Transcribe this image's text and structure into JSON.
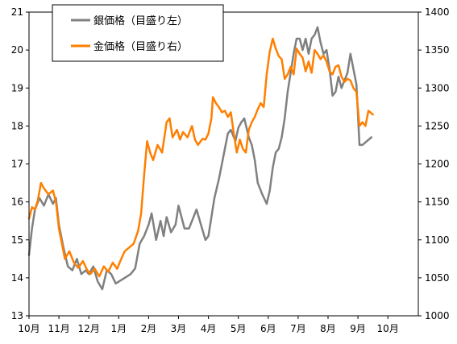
{
  "chart_data": {
    "type": "line",
    "title": "",
    "xlabel": "",
    "ylabel": "",
    "x_ticks": [
      "10月",
      "11月",
      "12月",
      "1月",
      "2月",
      "3月",
      "4月",
      "5月",
      "6月",
      "7月",
      "8月",
      "9月",
      "10月"
    ],
    "y_left": {
      "ticks": [
        "13",
        "14",
        "15",
        "16",
        "17",
        "18",
        "19",
        "20",
        "21"
      ],
      "min": 13,
      "max": 21
    },
    "y_right": {
      "ticks": [
        "1000",
        "1050",
        "1100",
        "1150",
        "1200",
        "1250",
        "1300",
        "1350",
        "1400"
      ],
      "min": 1000,
      "max": 1400
    },
    "grid": false,
    "legend_position": "top-center",
    "series": [
      {
        "name": "銀価格（目盛り左）",
        "axis": "left",
        "color": "#808080",
        "points": [
          [
            0,
            14.6
          ],
          [
            0.1,
            15.3
          ],
          [
            0.2,
            15.8
          ],
          [
            0.35,
            16.1
          ],
          [
            0.5,
            15.9
          ],
          [
            0.65,
            16.2
          ],
          [
            0.8,
            15.95
          ],
          [
            0.9,
            16.1
          ],
          [
            1.0,
            15.4
          ],
          [
            1.15,
            14.8
          ],
          [
            1.3,
            14.3
          ],
          [
            1.45,
            14.2
          ],
          [
            1.6,
            14.5
          ],
          [
            1.75,
            14.1
          ],
          [
            1.9,
            14.2
          ],
          [
            2.0,
            14.1
          ],
          [
            2.15,
            14.3
          ],
          [
            2.3,
            13.9
          ],
          [
            2.45,
            13.7
          ],
          [
            2.6,
            14.2
          ],
          [
            2.75,
            14.1
          ],
          [
            2.9,
            13.85
          ],
          [
            3.0,
            13.9
          ],
          [
            3.2,
            14.0
          ],
          [
            3.4,
            14.1
          ],
          [
            3.55,
            14.25
          ],
          [
            3.7,
            14.9
          ],
          [
            3.85,
            15.1
          ],
          [
            4.0,
            15.4
          ],
          [
            4.1,
            15.7
          ],
          [
            4.25,
            15.0
          ],
          [
            4.4,
            15.5
          ],
          [
            4.5,
            15.1
          ],
          [
            4.6,
            15.6
          ],
          [
            4.75,
            15.2
          ],
          [
            4.9,
            15.4
          ],
          [
            5.0,
            15.9
          ],
          [
            5.1,
            15.6
          ],
          [
            5.2,
            15.3
          ],
          [
            5.35,
            15.3
          ],
          [
            5.5,
            15.6
          ],
          [
            5.6,
            15.8
          ],
          [
            5.75,
            15.4
          ],
          [
            5.9,
            15.0
          ],
          [
            6.0,
            15.1
          ],
          [
            6.1,
            15.6
          ],
          [
            6.2,
            16.1
          ],
          [
            6.35,
            16.6
          ],
          [
            6.45,
            17.0
          ],
          [
            6.55,
            17.4
          ],
          [
            6.65,
            17.8
          ],
          [
            6.75,
            17.9
          ],
          [
            6.9,
            17.6
          ],
          [
            7.0,
            17.95
          ],
          [
            7.1,
            18.1
          ],
          [
            7.2,
            18.2
          ],
          [
            7.35,
            17.7
          ],
          [
            7.45,
            17.5
          ],
          [
            7.55,
            17.1
          ],
          [
            7.65,
            16.5
          ],
          [
            7.8,
            16.2
          ],
          [
            7.95,
            15.95
          ],
          [
            8.05,
            16.3
          ],
          [
            8.15,
            16.9
          ],
          [
            8.25,
            17.3
          ],
          [
            8.35,
            17.4
          ],
          [
            8.45,
            17.7
          ],
          [
            8.55,
            18.2
          ],
          [
            8.65,
            18.9
          ],
          [
            8.75,
            19.4
          ],
          [
            8.85,
            19.9
          ],
          [
            8.95,
            20.3
          ],
          [
            9.05,
            20.3
          ],
          [
            9.15,
            20.0
          ],
          [
            9.25,
            20.3
          ],
          [
            9.35,
            19.9
          ],
          [
            9.45,
            20.3
          ],
          [
            9.55,
            20.4
          ],
          [
            9.65,
            20.6
          ],
          [
            9.75,
            20.2
          ],
          [
            9.85,
            19.9
          ],
          [
            9.95,
            20.0
          ],
          [
            10.05,
            19.5
          ],
          [
            10.15,
            18.8
          ],
          [
            10.25,
            18.9
          ],
          [
            10.35,
            19.3
          ],
          [
            10.45,
            19.0
          ],
          [
            10.55,
            19.2
          ],
          [
            10.65,
            19.4
          ],
          [
            10.75,
            19.9
          ],
          [
            10.85,
            19.5
          ],
          [
            10.95,
            19.1
          ],
          [
            11.05,
            17.5
          ],
          [
            11.15,
            17.5
          ],
          [
            11.3,
            17.6
          ],
          [
            11.45,
            17.7
          ]
        ]
      },
      {
        "name": "金価格（目盛り右）",
        "axis": "right",
        "color": "#FF7F00",
        "points": [
          [
            0,
            1128
          ],
          [
            0.1,
            1143
          ],
          [
            0.2,
            1140
          ],
          [
            0.3,
            1153
          ],
          [
            0.4,
            1175
          ],
          [
            0.5,
            1168
          ],
          [
            0.65,
            1160
          ],
          [
            0.8,
            1165
          ],
          [
            0.9,
            1150
          ],
          [
            1.0,
            1115
          ],
          [
            1.1,
            1095
          ],
          [
            1.2,
            1075
          ],
          [
            1.35,
            1085
          ],
          [
            1.5,
            1070
          ],
          [
            1.65,
            1063
          ],
          [
            1.8,
            1072
          ],
          [
            1.95,
            1060
          ],
          [
            2.05,
            1055
          ],
          [
            2.2,
            1062
          ],
          [
            2.35,
            1052
          ],
          [
            2.5,
            1065
          ],
          [
            2.65,
            1058
          ],
          [
            2.8,
            1070
          ],
          [
            2.95,
            1062
          ],
          [
            3.05,
            1072
          ],
          [
            3.2,
            1085
          ],
          [
            3.35,
            1090
          ],
          [
            3.5,
            1095
          ],
          [
            3.65,
            1112
          ],
          [
            3.75,
            1135
          ],
          [
            3.85,
            1185
          ],
          [
            3.95,
            1230
          ],
          [
            4.05,
            1215
          ],
          [
            4.15,
            1205
          ],
          [
            4.3,
            1225
          ],
          [
            4.45,
            1215
          ],
          [
            4.6,
            1255
          ],
          [
            4.7,
            1260
          ],
          [
            4.8,
            1235
          ],
          [
            4.95,
            1245
          ],
          [
            5.05,
            1232
          ],
          [
            5.15,
            1242
          ],
          [
            5.3,
            1235
          ],
          [
            5.45,
            1250
          ],
          [
            5.55,
            1232
          ],
          [
            5.65,
            1225
          ],
          [
            5.8,
            1233
          ],
          [
            5.9,
            1232
          ],
          [
            6.0,
            1240
          ],
          [
            6.1,
            1260
          ],
          [
            6.15,
            1288
          ],
          [
            6.25,
            1280
          ],
          [
            6.35,
            1275
          ],
          [
            6.45,
            1268
          ],
          [
            6.55,
            1270
          ],
          [
            6.65,
            1262
          ],
          [
            6.75,
            1268
          ],
          [
            6.85,
            1240
          ],
          [
            6.95,
            1215
          ],
          [
            7.05,
            1232
          ],
          [
            7.15,
            1220
          ],
          [
            7.25,
            1215
          ],
          [
            7.35,
            1245
          ],
          [
            7.45,
            1255
          ],
          [
            7.55,
            1262
          ],
          [
            7.65,
            1272
          ],
          [
            7.75,
            1280
          ],
          [
            7.85,
            1275
          ],
          [
            7.95,
            1318
          ],
          [
            8.05,
            1348
          ],
          [
            8.15,
            1365
          ],
          [
            8.25,
            1352
          ],
          [
            8.35,
            1342
          ],
          [
            8.45,
            1338
          ],
          [
            8.55,
            1312
          ],
          [
            8.65,
            1318
          ],
          [
            8.75,
            1328
          ],
          [
            8.85,
            1318
          ],
          [
            8.95,
            1352
          ],
          [
            9.05,
            1345
          ],
          [
            9.15,
            1340
          ],
          [
            9.25,
            1322
          ],
          [
            9.35,
            1335
          ],
          [
            9.45,
            1320
          ],
          [
            9.55,
            1350
          ],
          [
            9.65,
            1345
          ],
          [
            9.75,
            1338
          ],
          [
            9.85,
            1343
          ],
          [
            9.95,
            1335
          ],
          [
            10.05,
            1322
          ],
          [
            10.15,
            1318
          ],
          [
            10.25,
            1328
          ],
          [
            10.35,
            1330
          ],
          [
            10.45,
            1315
          ],
          [
            10.55,
            1308
          ],
          [
            10.65,
            1312
          ],
          [
            10.75,
            1310
          ],
          [
            10.85,
            1300
          ],
          [
            10.95,
            1295
          ],
          [
            11.05,
            1250
          ],
          [
            11.15,
            1255
          ],
          [
            11.25,
            1250
          ],
          [
            11.35,
            1270
          ],
          [
            11.5,
            1265
          ]
        ]
      }
    ]
  }
}
